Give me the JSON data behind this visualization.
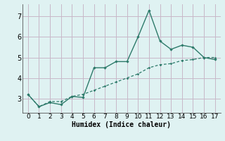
{
  "xlabel": "Humidex (Indice chaleur)",
  "line1_x": [
    0,
    1,
    2,
    3,
    4,
    5,
    6,
    7,
    8,
    9,
    10,
    11,
    12,
    13,
    14,
    15,
    16,
    17
  ],
  "line1_y": [
    3.2,
    2.6,
    2.8,
    2.7,
    3.1,
    3.05,
    4.5,
    4.5,
    4.8,
    4.8,
    6.0,
    7.3,
    5.8,
    5.4,
    5.6,
    5.5,
    5.0,
    4.9
  ],
  "line2_x": [
    0,
    1,
    2,
    3,
    4,
    5,
    6,
    7,
    8,
    9,
    10,
    11,
    12,
    13,
    14,
    15,
    16,
    17
  ],
  "line2_y": [
    3.2,
    2.6,
    2.85,
    2.85,
    3.1,
    3.2,
    3.4,
    3.6,
    3.8,
    4.0,
    4.2,
    4.5,
    4.65,
    4.7,
    4.85,
    4.9,
    5.0,
    5.0
  ],
  "line_color": "#2d7a6a",
  "bg_color": "#dff2f2",
  "grid_color": "#c8b8c8",
  "ylim": [
    2.3,
    7.6
  ],
  "xlim": [
    -0.5,
    17.5
  ],
  "yticks": [
    3,
    4,
    5,
    6,
    7
  ],
  "xticks": [
    0,
    1,
    2,
    3,
    4,
    5,
    6,
    7,
    8,
    9,
    10,
    11,
    12,
    13,
    14,
    15,
    16,
    17
  ]
}
